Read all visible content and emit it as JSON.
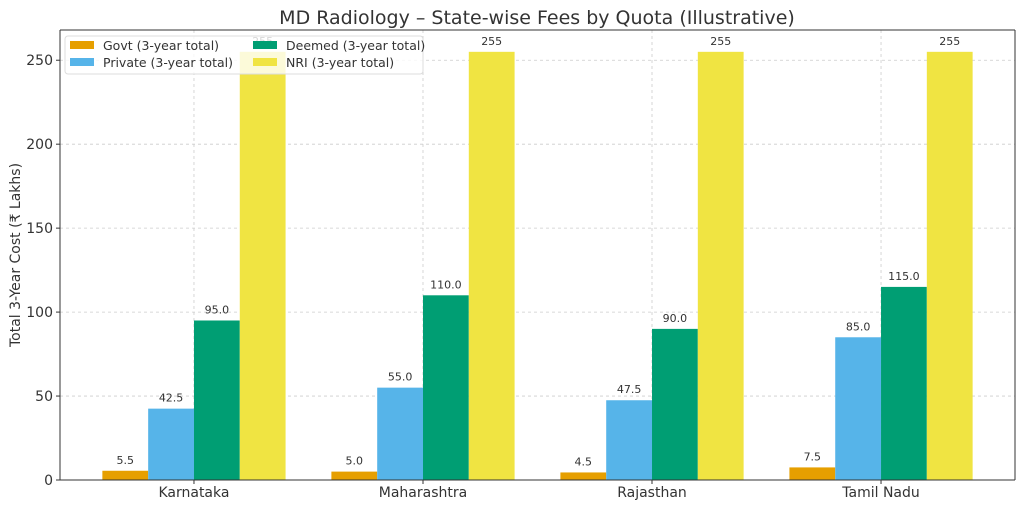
{
  "chart_data": {
    "type": "bar",
    "title": "MD Radiology – State-wise Fees by Quota (Illustrative)",
    "xlabel": "",
    "ylabel": "Total 3-Year Cost (₹ Lakhs)",
    "ylim": [
      0,
      268
    ],
    "yticks": [
      0,
      50,
      100,
      150,
      200,
      250
    ],
    "grid": true,
    "legend_position": "top-left",
    "categories": [
      "Karnataka",
      "Maharashtra",
      "Rajasthan",
      "Tamil Nadu"
    ],
    "series": [
      {
        "name": "Govt (3-year total)",
        "color": "#E69F00",
        "values": [
          5.5,
          5.0,
          4.5,
          7.5
        ],
        "labels": [
          "5.5",
          "5.0",
          "4.5",
          "7.5"
        ]
      },
      {
        "name": "Private (3-year total)",
        "color": "#56B4E9",
        "values": [
          42.5,
          55.0,
          47.5,
          85.0
        ],
        "labels": [
          "42.5",
          "55.0",
          "47.5",
          "85.0"
        ]
      },
      {
        "name": "Deemed (3-year total)",
        "color": "#009E73",
        "values": [
          95.0,
          110.0,
          90.0,
          115.0
        ],
        "labels": [
          "95.0",
          "110.0",
          "90.0",
          "115.0"
        ]
      },
      {
        "name": "NRI (3-year total)",
        "color": "#F0E442",
        "values": [
          255,
          255,
          255,
          255
        ],
        "labels": [
          "255",
          "255",
          "255",
          "255"
        ]
      }
    ]
  }
}
